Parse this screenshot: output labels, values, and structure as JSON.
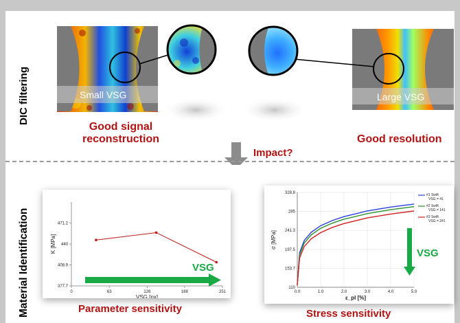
{
  "sections": {
    "top": "DIC filtering",
    "bottom": "Material Identification"
  },
  "top": {
    "small_vsg_label": "Small VSG",
    "large_vsg_label": "Large VSG",
    "good_signal_line1": "Good signal",
    "good_signal_line2": "reconstruction",
    "good_resolution": "Good resolution",
    "impact": "Impact?"
  },
  "bottom": {
    "parameter_sensitivity": "Parameter sensitivity",
    "stress_sensitivity": "Stress sensitivity",
    "vsg_arrow_label": "VSG"
  },
  "colors": {
    "accent_red": "#b31212",
    "arrow_green": "#1aaa45",
    "gray_arrow": "#8c8c8c"
  },
  "chart_data": [
    {
      "type": "line",
      "xlabel": "VSG [px]",
      "ylabel": "K [MPa]",
      "xlim": [
        0,
        251
      ],
      "ylim": [
        377.7,
        502.5
      ],
      "xticks": [
        "0",
        "63",
        "126",
        "188",
        "251"
      ],
      "yticks": [
        "377.7",
        "408.9",
        "440",
        "471.2"
      ],
      "series": [
        {
          "x": [
            41,
            141,
            241
          ],
          "values": [
            446,
            457,
            413
          ]
        }
      ]
    },
    {
      "type": "line",
      "xlabel": "ε_pl [%]",
      "ylabel": "σ [MPa]",
      "xlim": [
        0,
        5
      ],
      "ylim": [
        110,
        328.8
      ],
      "xticks": [
        "0.0",
        "1.0",
        "2.0",
        "3.0",
        "4.0",
        "5.0"
      ],
      "yticks": [
        "110",
        "153.7",
        "197.5",
        "241.3",
        "285",
        "328.8"
      ],
      "legend_placement": "top-right",
      "series": [
        {
          "name": "#1 Swift VSG = 41",
          "color": "#2a3fe0",
          "x": [
            0,
            0.1,
            0.3,
            0.6,
            1.0,
            1.5,
            2.0,
            3.0,
            4.0,
            5.0
          ],
          "values": [
            115,
            190,
            218,
            237,
            252,
            264,
            273,
            286,
            295,
            302
          ]
        },
        {
          "name": "#2 Swift VSG = 141",
          "color": "#2d8f2d",
          "x": [
            0,
            0.1,
            0.3,
            0.6,
            1.0,
            1.5,
            2.0,
            3.0,
            4.0,
            5.0
          ],
          "values": [
            115,
            185,
            212,
            231,
            246,
            258,
            267,
            280,
            289,
            296
          ]
        },
        {
          "name": "#3 Swift VSG = 241",
          "color": "#d22020",
          "x": [
            0,
            0.1,
            0.3,
            0.6,
            1.0,
            1.5,
            2.0,
            3.0,
            4.0,
            5.0
          ],
          "values": [
            115,
            178,
            204,
            222,
            236,
            248,
            257,
            270,
            279,
            286
          ]
        }
      ]
    }
  ]
}
